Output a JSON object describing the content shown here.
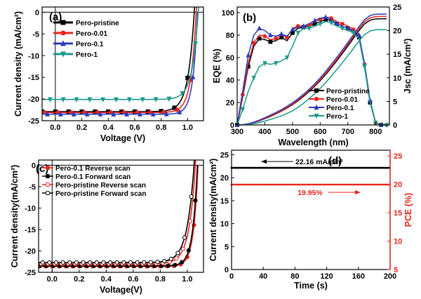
{
  "chart_data": [
    {
      "id": "a",
      "type": "line",
      "panel_label": "(a)",
      "xlabel": "Voltage (V)",
      "ylabel": "Current density (mA/cm²)",
      "xlim": [
        -0.1,
        1.12
      ],
      "ylim": [
        -25,
        1.2
      ],
      "xticks": [
        "0.0",
        "0.2",
        "0.4",
        "0.6",
        "0.8",
        "1.0"
      ],
      "xtick_values": [
        0.0,
        0.2,
        0.4,
        0.6,
        0.8,
        1.0
      ],
      "yticks": [
        "0",
        "-5",
        "-10",
        "-15",
        "-20",
        "-25"
      ],
      "ytick_values": [
        0,
        -5,
        -10,
        -15,
        -20,
        -25
      ],
      "legend_position": "top-left",
      "series": [
        {
          "name": "Pero-pristine",
          "color": "#000000",
          "marker": "square",
          "jsc": 22.9,
          "voc": 1.05,
          "n": 1.8
        },
        {
          "name": "Pero-0.01",
          "color": "#e8241c",
          "marker": "circle",
          "jsc": 23.1,
          "voc": 1.065,
          "n": 1.55
        },
        {
          "name": "Pero-0.1",
          "color": "#2a3bbd",
          "marker": "triangle",
          "jsc": 23.5,
          "voc": 1.075,
          "n": 1.35
        },
        {
          "name": "Pero-1",
          "color": "#1a9a8a",
          "marker": "triangle-down",
          "jsc": 20.1,
          "voc": 1.08,
          "n": 1.75
        }
      ]
    },
    {
      "id": "b",
      "type": "line",
      "panel_label": "(b)",
      "xlabel": "Wavelength (nm)",
      "ylabel": "EQE (%)",
      "ylabel_right": "Jsc (mA/cm²)",
      "xlim": [
        300,
        850
      ],
      "ylim": [
        0,
        105
      ],
      "ylim_right": [
        0,
        25
      ],
      "xticks": [
        "300",
        "400",
        "500",
        "600",
        "700",
        "800"
      ],
      "xtick_values": [
        300,
        400,
        500,
        600,
        700,
        800
      ],
      "yticks": [
        "0",
        "20",
        "40",
        "60",
        "80",
        "100"
      ],
      "ytick_values": [
        0,
        20,
        40,
        60,
        80,
        100
      ],
      "yticks_right": [
        "0",
        "5",
        "10",
        "15",
        "20",
        "25"
      ],
      "ytick_values_right": [
        0,
        5,
        10,
        15,
        20,
        25
      ],
      "legend_position": "bottom-right",
      "x": [
        300,
        320,
        340,
        360,
        380,
        400,
        420,
        440,
        460,
        480,
        500,
        520,
        540,
        560,
        580,
        600,
        620,
        640,
        660,
        680,
        700,
        720,
        740,
        760,
        780,
        800,
        820,
        840
      ],
      "series": [
        {
          "name": "Pero-pristine",
          "color": "#000000",
          "marker": "square",
          "eqe": [
            0,
            25,
            52,
            70,
            77,
            76,
            74,
            75,
            78,
            75,
            82,
            86,
            87,
            88,
            90,
            92,
            94,
            93,
            90,
            88,
            86,
            83,
            78,
            52,
            20,
            2,
            0,
            0
          ],
          "jsc_final": 22.5
        },
        {
          "name": "Pero-0.01",
          "color": "#e8241c",
          "marker": "circle",
          "eqe": [
            0,
            27,
            55,
            73,
            80,
            79,
            76,
            77,
            80,
            78,
            86,
            88,
            88,
            89,
            92,
            94,
            96,
            95,
            92,
            90,
            88,
            85,
            80,
            54,
            21,
            2,
            0,
            0
          ],
          "jsc_final": 23.0
        },
        {
          "name": "Pero-0.1",
          "color": "#2a3bbd",
          "marker": "triangle",
          "eqe": [
            0,
            30,
            62,
            80,
            86,
            84,
            80,
            79,
            81,
            79,
            85,
            87,
            88,
            90,
            93,
            95,
            96,
            94,
            90,
            88,
            86,
            84,
            80,
            55,
            22,
            2,
            0,
            0
          ],
          "jsc_final": 23.5
        },
        {
          "name": "Pero-1",
          "color": "#1a9a8a",
          "marker": "triangle-down",
          "eqe": [
            0,
            14,
            30,
            42,
            52,
            55,
            54,
            55,
            57,
            60,
            70,
            82,
            86,
            86,
            88,
            90,
            92,
            91,
            88,
            86,
            84,
            82,
            77,
            52,
            20,
            2,
            0,
            0
          ],
          "jsc_final": 20.2
        }
      ]
    },
    {
      "id": "c",
      "type": "line",
      "panel_label": "(c)",
      "xlabel": "Voltage(V)",
      "ylabel": "Current density(mA/cm²)",
      "xlim": [
        -0.1,
        1.12
      ],
      "ylim": [
        -25,
        1.2
      ],
      "xticks": [
        "0.0",
        "0.2",
        "0.4",
        "0.6",
        "0.8",
        "1.0"
      ],
      "xtick_values": [
        0.0,
        0.2,
        0.4,
        0.6,
        0.8,
        1.0
      ],
      "yticks": [
        "0",
        "-5",
        "-10",
        "-15",
        "-20",
        "-25"
      ],
      "ytick_values": [
        0,
        -5,
        -10,
        -15,
        -20,
        -25
      ],
      "legend_position": "top-left",
      "series": [
        {
          "name": "Pero-0.1 Reverse scan",
          "color": "#e8241c",
          "marker": "circle",
          "fill": "filled",
          "jsc": 23.6,
          "voc": 1.08,
          "n": 1.3
        },
        {
          "name": "Pero-0.1 Forward scan",
          "color": "#000000",
          "marker": "circle",
          "fill": "filled",
          "jsc": 23.5,
          "voc": 1.075,
          "n": 1.35
        },
        {
          "name": "Pero-pristine Reverse scan",
          "color": "#e8241c",
          "marker": "circle",
          "fill": "open",
          "jsc": 23.0,
          "voc": 1.06,
          "n": 1.85
        },
        {
          "name": "Pero-pristine Forward scan",
          "color": "#000000",
          "marker": "circle",
          "fill": "open",
          "jsc": 22.7,
          "voc": 1.05,
          "n": 2.0
        }
      ]
    },
    {
      "id": "d",
      "type": "line",
      "panel_label": "(d)",
      "xlabel": "Time (s)",
      "ylabel": "Current density(mA/cm²)",
      "ylabel_right": "PCE (%)",
      "xlim": [
        0,
        200
      ],
      "ylim": [
        0,
        26
      ],
      "ylim_right": [
        5,
        26
      ],
      "xticks": [
        "0",
        "40",
        "80",
        "120",
        "160",
        "200"
      ],
      "xtick_values": [
        0,
        40,
        80,
        120,
        160,
        200
      ],
      "yticks": [
        "0",
        "5",
        "10",
        "15",
        "20",
        "25"
      ],
      "ytick_values": [
        0,
        5,
        10,
        15,
        20,
        25
      ],
      "yticks_right": [
        "5",
        "10",
        "15",
        "20",
        "25"
      ],
      "ytick_values_right": [
        5,
        10,
        15,
        20,
        25
      ],
      "series": [
        {
          "name": "Current density",
          "color": "#000000",
          "value": 22.16,
          "annotation": "22.16 mA/cm²"
        },
        {
          "name": "PCE",
          "color": "#e8241c",
          "value": 19.95,
          "annotation": "19.95%"
        }
      ]
    }
  ]
}
